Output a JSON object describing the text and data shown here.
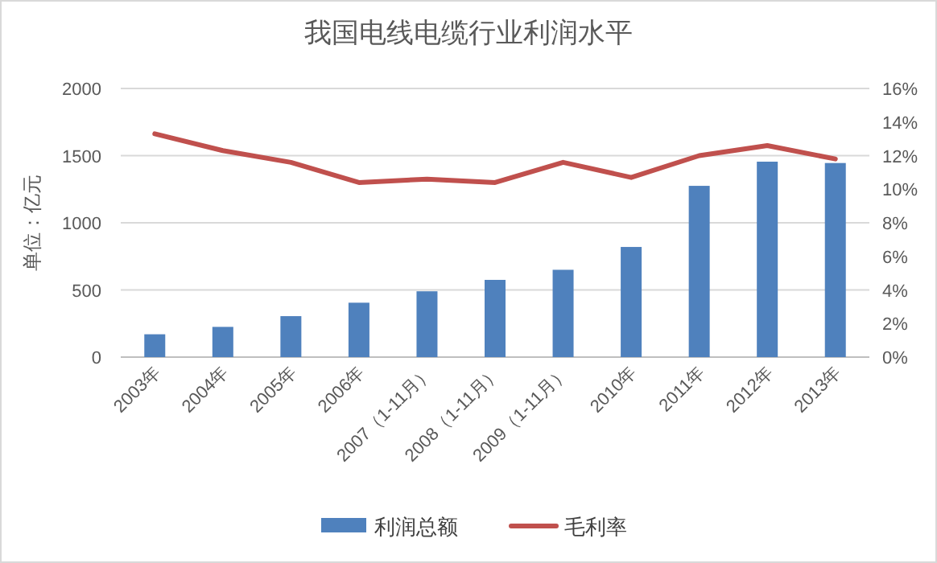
{
  "chart_data": {
    "type": "bar",
    "title": "我国电线电缆行业利润水平",
    "ylabel": "单位：亿元",
    "categories": [
      "2003年",
      "2004年",
      "2005年",
      "2006年",
      "2007（1-11月）",
      "2008（1-11月）",
      "2009（1-11月）",
      "2010年",
      "2011年",
      "2012年",
      "2013年"
    ],
    "series": [
      {
        "name": "利润总额",
        "color": "#4f81bd",
        "values": [
          170,
          225,
          305,
          405,
          490,
          575,
          650,
          820,
          1275,
          1455,
          1445
        ]
      },
      {
        "name": "毛利率",
        "type": "line",
        "axis": "y2",
        "color": "#c0504d",
        "values": [
          13.3,
          12.3,
          11.6,
          10.4,
          10.6,
          10.4,
          11.6,
          10.7,
          12.0,
          12.6,
          11.8
        ]
      }
    ],
    "ylim": [
      0,
      2000
    ],
    "yticks": [
      0,
      500,
      1000,
      1500,
      2000
    ],
    "y2lim": [
      0,
      16
    ],
    "y2ticks": [
      {
        "value": 0,
        "label": "0%"
      },
      {
        "value": 2,
        "label": "2%"
      },
      {
        "value": 4,
        "label": "4%"
      },
      {
        "value": 6,
        "label": "6%"
      },
      {
        "value": 8,
        "label": "8%"
      },
      {
        "value": 10,
        "label": "10%"
      },
      {
        "value": 12,
        "label": "12%"
      },
      {
        "value": 14,
        "label": "14%"
      },
      {
        "value": 16,
        "label": "16%"
      }
    ],
    "grid": "y",
    "legend": "bottom"
  }
}
